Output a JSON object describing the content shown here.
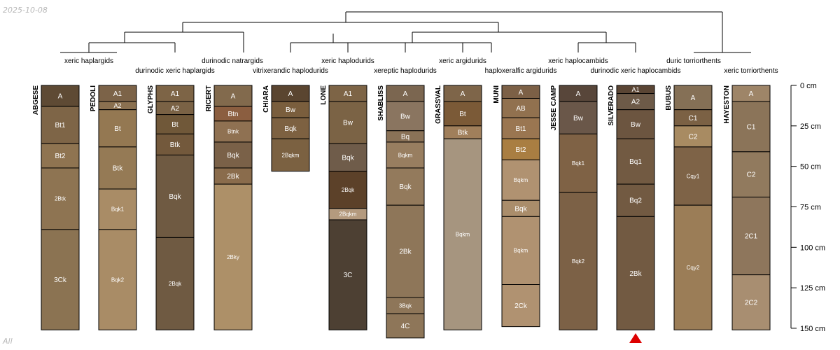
{
  "date_stamp": "2025-10-08",
  "corner_stamp": "All",
  "depth_axis": {
    "unit": "cm",
    "max_depth": 150,
    "ticks": [
      {
        "depth": 0,
        "label": "0 cm"
      },
      {
        "depth": 25,
        "label": "25 cm"
      },
      {
        "depth": 50,
        "label": "50 cm"
      },
      {
        "depth": 75,
        "label": "75 cm"
      },
      {
        "depth": 100,
        "label": "100 cm"
      },
      {
        "depth": 125,
        "label": "125 cm"
      },
      {
        "depth": 150,
        "label": "150 cm"
      }
    ]
  },
  "profiles": [
    {
      "id": "ABGESE",
      "horizons": [
        {
          "name": "A",
          "top": 0,
          "bottom": 13,
          "color": "#5e4a34"
        },
        {
          "name": "Bt1",
          "top": 13,
          "bottom": 36,
          "color": "#7e6547"
        },
        {
          "name": "Bt2",
          "top": 36,
          "bottom": 51,
          "color": "#8f7451"
        },
        {
          "name": "2Btk",
          "top": 51,
          "bottom": 89,
          "color": "#8e7452"
        },
        {
          "name": "3Ck",
          "top": 89,
          "bottom": 151,
          "color": "#8b7352"
        }
      ]
    },
    {
      "id": "PEDOLI",
      "horizons": [
        {
          "name": "A1",
          "top": 0,
          "bottom": 10,
          "color": "#7c6348"
        },
        {
          "name": "A2",
          "top": 10,
          "bottom": 15,
          "color": "#8a7050"
        },
        {
          "name": "Bt",
          "top": 15,
          "bottom": 38,
          "color": "#947852"
        },
        {
          "name": "Btk",
          "top": 38,
          "bottom": 64,
          "color": "#957a55"
        },
        {
          "name": "Bqk1",
          "top": 64,
          "bottom": 89,
          "color": "#a98c66"
        },
        {
          "name": "Bqk2",
          "top": 89,
          "bottom": 151,
          "color": "#a98c66"
        }
      ]
    },
    {
      "id": "GLYPHS",
      "horizons": [
        {
          "name": "A1",
          "top": 0,
          "bottom": 10,
          "color": "#7d6446"
        },
        {
          "name": "A2",
          "top": 10,
          "bottom": 18,
          "color": "#7a6245"
        },
        {
          "name": "Bt",
          "top": 18,
          "bottom": 30,
          "color": "#705839"
        },
        {
          "name": "Btk",
          "top": 30,
          "bottom": 43,
          "color": "#73593c"
        },
        {
          "name": "Bqk",
          "top": 43,
          "bottom": 94,
          "color": "#6f5a42"
        },
        {
          "name": "2Bqk",
          "top": 94,
          "bottom": 151,
          "color": "#6f5a42"
        }
      ]
    },
    {
      "id": "RICERT",
      "horizons": [
        {
          "name": "A",
          "top": 0,
          "bottom": 13,
          "color": "#826a4d"
        },
        {
          "name": "Btn",
          "top": 13,
          "bottom": 22,
          "color": "#8b5e40"
        },
        {
          "name": "Btnk",
          "top": 22,
          "bottom": 35,
          "color": "#8f7152"
        },
        {
          "name": "Bqk",
          "top": 35,
          "bottom": 51,
          "color": "#7a6148"
        },
        {
          "name": "2Bk",
          "top": 51,
          "bottom": 61,
          "color": "#8a6c4c"
        },
        {
          "name": "2Bky",
          "top": 61,
          "bottom": 151,
          "color": "#ad9068"
        }
      ]
    },
    {
      "id": "CHIARA",
      "horizons": [
        {
          "name": "A",
          "top": 0,
          "bottom": 10,
          "color": "#5a4530"
        },
        {
          "name": "Bw",
          "top": 10,
          "bottom": 20,
          "color": "#7a5e3d"
        },
        {
          "name": "Bqk",
          "top": 20,
          "bottom": 33,
          "color": "#7d6141"
        },
        {
          "name": "2Bqkm",
          "top": 33,
          "bottom": 53,
          "color": "#7b6141"
        }
      ]
    },
    {
      "id": "LONE",
      "horizons": [
        {
          "name": "A1",
          "top": 0,
          "bottom": 10,
          "color": "#7d6446"
        },
        {
          "name": "Bw",
          "top": 10,
          "bottom": 36,
          "color": "#7b6345"
        },
        {
          "name": "Bqk",
          "top": 36,
          "bottom": 53,
          "color": "#6f5c4a"
        },
        {
          "name": "2Bqk",
          "top": 53,
          "bottom": 76,
          "color": "#5c4129"
        },
        {
          "name": "2Bqkm",
          "top": 76,
          "bottom": 83,
          "color": "#b49a7e"
        },
        {
          "name": "3C",
          "top": 83,
          "bottom": 151,
          "color": "#4d4033"
        }
      ]
    },
    {
      "id": "SHABLISS",
      "horizons": [
        {
          "name": "A",
          "top": 0,
          "bottom": 10,
          "color": "#7b6650"
        },
        {
          "name": "Bw",
          "top": 10,
          "bottom": 28,
          "color": "#8a7560"
        },
        {
          "name": "Bq",
          "top": 28,
          "bottom": 35,
          "color": "#8a7257"
        },
        {
          "name": "Bqkm",
          "top": 35,
          "bottom": 51,
          "color": "#987e60"
        },
        {
          "name": "Bqk",
          "top": 51,
          "bottom": 74,
          "color": "#937a5c"
        },
        {
          "name": "2Bk",
          "top": 74,
          "bottom": 131,
          "color": "#8e7659"
        },
        {
          "name": "3Bqk",
          "top": 131,
          "bottom": 141,
          "color": "#8e7659"
        },
        {
          "name": "4C",
          "top": 141,
          "bottom": 156,
          "color": "#8e7659"
        }
      ]
    },
    {
      "id": "GRASSVAL",
      "horizons": [
        {
          "name": "A",
          "top": 0,
          "bottom": 10,
          "color": "#7e6549"
        },
        {
          "name": "Bt",
          "top": 10,
          "bottom": 25,
          "color": "#7b5a37"
        },
        {
          "name": "Btk",
          "top": 25,
          "bottom": 33,
          "color": "#a07f5b"
        },
        {
          "name": "Bqkm",
          "top": 33,
          "bottom": 151,
          "color": "#a6957f"
        }
      ]
    },
    {
      "id": "MUNI",
      "horizons": [
        {
          "name": "A",
          "top": 0,
          "bottom": 8,
          "color": "#7c6046"
        },
        {
          "name": "AB",
          "top": 8,
          "bottom": 20,
          "color": "#91714f"
        },
        {
          "name": "Bt1",
          "top": 20,
          "bottom": 33,
          "color": "#9a7651"
        },
        {
          "name": "Bt2",
          "top": 33,
          "bottom": 46,
          "color": "#a97e42"
        },
        {
          "name": "Bqkm",
          "top": 46,
          "bottom": 71,
          "color": "#b09271"
        },
        {
          "name": "Bqk",
          "top": 71,
          "bottom": 81,
          "color": "#aa8d6b"
        },
        {
          "name": "Bqkm",
          "top": 81,
          "bottom": 123,
          "color": "#b09271"
        },
        {
          "name": "2Ck",
          "top": 123,
          "bottom": 149,
          "color": "#b09271"
        }
      ]
    },
    {
      "id": "JESSE CAMP",
      "horizons": [
        {
          "name": "A",
          "top": 0,
          "bottom": 10,
          "color": "#58463a"
        },
        {
          "name": "Bw",
          "top": 10,
          "bottom": 30,
          "color": "#6a5749"
        },
        {
          "name": "Bqk1",
          "top": 30,
          "bottom": 66,
          "color": "#7f6245"
        },
        {
          "name": "Bqk2",
          "top": 66,
          "bottom": 151,
          "color": "#7c6146"
        }
      ]
    },
    {
      "id": "SILVERADO",
      "horizons": [
        {
          "name": "A1",
          "top": 0,
          "bottom": 5,
          "color": "#5a4534"
        },
        {
          "name": "A2",
          "top": 5,
          "bottom": 15,
          "color": "#6d5a48"
        },
        {
          "name": "Bw",
          "top": 15,
          "bottom": 33,
          "color": "#6c5540"
        },
        {
          "name": "Bq1",
          "top": 33,
          "bottom": 61,
          "color": "#725a42"
        },
        {
          "name": "Bq2",
          "top": 61,
          "bottom": 81,
          "color": "#725a42"
        },
        {
          "name": "2Bk",
          "top": 81,
          "bottom": 151,
          "color": "#725a42"
        }
      ]
    },
    {
      "id": "BUBUS",
      "horizons": [
        {
          "name": "A",
          "top": 0,
          "bottom": 15,
          "color": "#857056"
        },
        {
          "name": "C1",
          "top": 15,
          "bottom": 25,
          "color": "#7b6144"
        },
        {
          "name": "C2",
          "top": 25,
          "bottom": 38,
          "color": "#a88b62"
        },
        {
          "name": "Cqy1",
          "top": 38,
          "bottom": 74,
          "color": "#7e6347"
        },
        {
          "name": "Cqy2",
          "top": 74,
          "bottom": 151,
          "color": "#9b7d57"
        }
      ]
    },
    {
      "id": "HAYESTON",
      "horizons": [
        {
          "name": "A",
          "top": 0,
          "bottom": 10,
          "color": "#9e8568"
        },
        {
          "name": "C1",
          "top": 10,
          "bottom": 41,
          "color": "#8b7459"
        },
        {
          "name": "C2",
          "top": 41,
          "bottom": 69,
          "color": "#917a5e"
        },
        {
          "name": "2C1",
          "top": 69,
          "bottom": 117,
          "color": "#8e765c"
        },
        {
          "name": "2C2",
          "top": 117,
          "bottom": 151,
          "color": "#a88e71"
        }
      ]
    }
  ],
  "taxa_labels": [
    "xeric haplargids",
    "durinodic xeric haplargids",
    "durinodic natrargids",
    "vitrixerandic haplodurids",
    "xeric haplodurids",
    "xereptic haplodurids",
    "xeric argidurids",
    "haploxeralfic argidurids",
    "xeric haplocambids",
    "durinodic xeric haplocambids",
    "duric torriorthents",
    "xeric torriorthents"
  ],
  "marker": {
    "profile": "SILVERADO",
    "color": "#dd0000"
  }
}
